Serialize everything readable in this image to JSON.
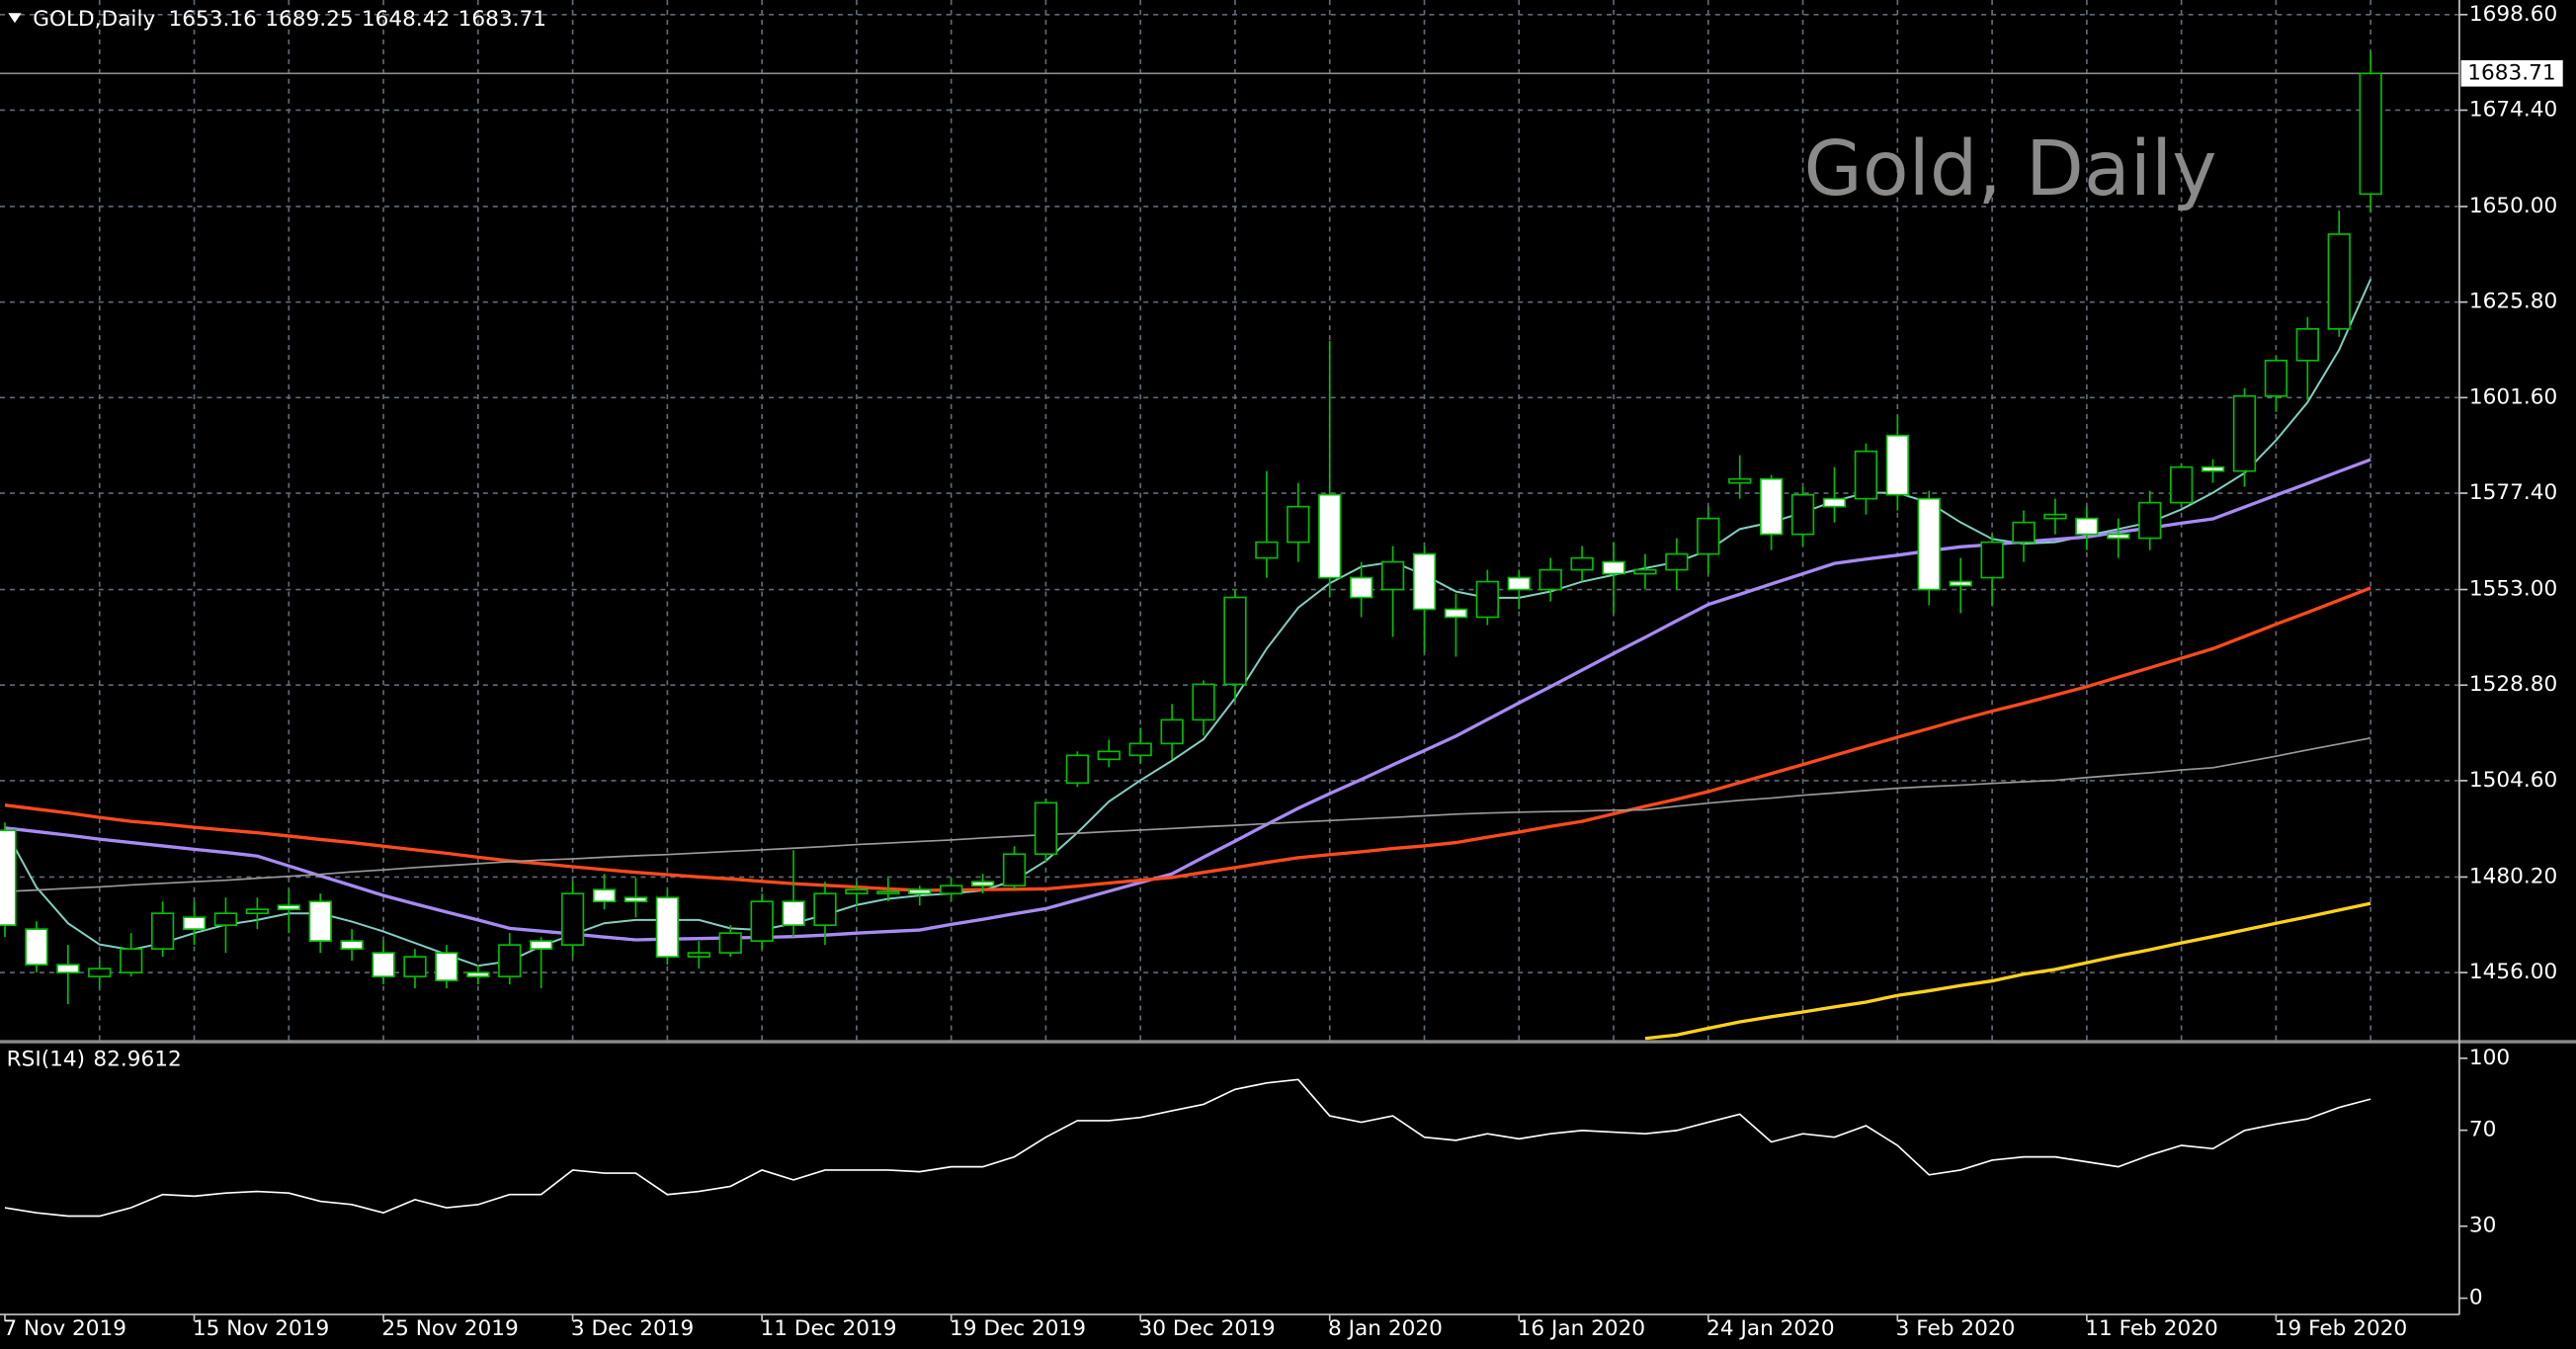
{
  "chart_data": [
    {
      "type": "candlestick",
      "title": "GOLD,Daily",
      "watermark": "Gold, Daily",
      "categories": [
        "7 Nov 2019",
        null,
        null,
        null,
        null,
        null,
        "15 Nov 2019",
        null,
        null,
        null,
        null,
        null,
        "25 Nov 2019",
        null,
        null,
        null,
        null,
        null,
        "3 Dec 2019",
        null,
        null,
        null,
        null,
        null,
        "11 Dec 2019",
        null,
        null,
        null,
        null,
        null,
        "19 Dec 2019",
        null,
        null,
        null,
        null,
        null,
        "30 Dec 2019",
        null,
        null,
        null,
        null,
        null,
        "8 Jan 2020",
        null,
        null,
        null,
        null,
        null,
        "16 Jan 2020",
        null,
        null,
        null,
        null,
        null,
        "24 Jan 2020",
        null,
        null,
        null,
        null,
        null,
        "3 Feb 2020",
        null,
        null,
        null,
        null,
        null,
        "11 Feb 2020",
        null,
        null,
        null,
        null,
        null,
        "19 Feb 2020",
        null,
        null,
        null
      ],
      "open": [
        1492,
        1467,
        1458,
        1455,
        1456,
        1462,
        1470,
        1468,
        1471,
        1473,
        1474,
        1464,
        1461,
        1455,
        1461,
        1456,
        1455,
        1464,
        1463,
        1477,
        1475,
        1475,
        1460,
        1461,
        1464,
        1474,
        1468,
        1476,
        1476,
        1477,
        1476,
        1479,
        1478,
        1486,
        1504,
        1510,
        1511,
        1514,
        1520,
        1529,
        1561,
        1565,
        1577,
        1556,
        1553,
        1562,
        1548,
        1546,
        1556,
        1553,
        1558,
        1560,
        1557,
        1558,
        1562,
        1580,
        1581,
        1567,
        1576,
        1576,
        1592,
        1576,
        1555,
        1556,
        1565,
        1571,
        1571,
        1567,
        1566,
        1575,
        1584,
        1583,
        1602,
        1611,
        1619,
        1653.16
      ],
      "high": [
        1494,
        1469,
        1463,
        1459,
        1466,
        1474,
        1474,
        1475,
        1475,
        1477,
        1476,
        1467,
        1464,
        1462,
        1463,
        1458,
        1466,
        1465,
        1479,
        1481,
        1480,
        1477,
        1464,
        1468,
        1476,
        1487,
        1479,
        1479,
        1480,
        1478,
        1480,
        1481,
        1488,
        1500,
        1512,
        1515,
        1518,
        1524,
        1530,
        1553,
        1583,
        1580,
        1616,
        1560,
        1564,
        1564,
        1552,
        1558,
        1558,
        1561,
        1564,
        1565,
        1562,
        1566,
        1574,
        1587,
        1582,
        1579,
        1584,
        1590,
        1597,
        1578,
        1561,
        1567,
        1573,
        1576,
        1574,
        1571,
        1578,
        1585,
        1586,
        1604,
        1612,
        1622,
        1649,
        1689.25
      ],
      "low": [
        1465,
        1456,
        1448,
        1452,
        1455,
        1460,
        1463,
        1461,
        1467,
        1466,
        1461,
        1459,
        1453,
        1452,
        1452,
        1453,
        1453,
        1452,
        1460,
        1472,
        1470,
        1458,
        1457,
        1460,
        1462,
        1465,
        1463,
        1473,
        1474,
        1473,
        1474,
        1476,
        1477,
        1484,
        1503,
        1508,
        1509,
        1510,
        1516,
        1525,
        1556,
        1560,
        1551,
        1546,
        1541,
        1537,
        1536,
        1544,
        1548,
        1550,
        1555,
        1547,
        1553,
        1553,
        1557,
        1576,
        1563,
        1564,
        1570,
        1572,
        1573,
        1549,
        1547,
        1549,
        1560,
        1567,
        1563,
        1561,
        1563,
        1574,
        1580,
        1579,
        1598,
        1601,
        1617,
        1648.42
      ],
      "close": [
        1468,
        1458,
        1456,
        1457,
        1462,
        1471,
        1467,
        1471,
        1472,
        1472,
        1464,
        1462,
        1455,
        1460,
        1454,
        1455,
        1463,
        1462,
        1476,
        1474,
        1474,
        1460,
        1461,
        1466,
        1474,
        1468,
        1476,
        1477,
        1476.5,
        1476,
        1478,
        1478,
        1486,
        1499,
        1511,
        1512,
        1514,
        1520,
        1529,
        1551,
        1565,
        1574,
        1556,
        1551,
        1560,
        1548,
        1546,
        1555,
        1553,
        1558,
        1561,
        1557,
        1558,
        1562,
        1571,
        1581,
        1567,
        1577,
        1574,
        1588,
        1577,
        1553,
        1554,
        1565,
        1570,
        1572,
        1567,
        1566,
        1575,
        1584,
        1583,
        1602,
        1611,
        1619,
        1643,
        1683.71
      ],
      "up_color": "#000000",
      "down_color": "#ffffff",
      "wick_color": "#00c000",
      "series": [
        {
          "color": "#7fd0c2",
          "width": 1.2,
          "values": [
            1492.2,
            1477.6,
            1468.5,
            1463.1,
            1461.8,
            1463.5,
            1466.0,
            1468.1,
            1469.3,
            1471.0,
            1471.0,
            1468.9,
            1466.4,
            1463.5,
            1460.6,
            1457.7,
            1458.9,
            1462.7,
            1465.6,
            1468.5,
            1469.3,
            1469.3,
            1469.3,
            1467.2,
            1466.8,
            1468.5,
            1470.6,
            1473.1,
            1474.7,
            1475.5,
            1476.0,
            1476.8,
            1479.3,
            1484.3,
            1491.4,
            1499.3,
            1504.7,
            1509.7,
            1515.1,
            1525.5,
            1538.0,
            1548.4,
            1554.6,
            1558.8,
            1560.0,
            1556.7,
            1552.5,
            1550.9,
            1550.9,
            1552.5,
            1555.0,
            1556.7,
            1558.4,
            1560.0,
            1562.9,
            1568.3,
            1570.0,
            1572.5,
            1575.4,
            1577.5,
            1577.5,
            1575.0,
            1570.0,
            1565.8,
            1564.6,
            1565.0,
            1566.7,
            1568.3,
            1570.0,
            1573.3,
            1577.5,
            1582.5,
            1590.8,
            1600.4,
            1613.7,
            1631.6
          ]
        },
        {
          "color": "#a88af5",
          "width": 2,
          "values": [
            1492.6,
            1491.7,
            1490.8,
            1489.8,
            1488.9,
            1488.1,
            1487.2,
            1486.4,
            1485.5,
            1483.0,
            1480.5,
            1478.0,
            1475.5,
            1473.4,
            1471.3,
            1469.3,
            1467.2,
            1466.5,
            1465.8,
            1465.0,
            1464.3,
            1464.5,
            1464.6,
            1464.8,
            1464.9,
            1465.1,
            1465.5,
            1466.0,
            1466.4,
            1466.8,
            1468.2,
            1469.5,
            1470.9,
            1472.2,
            1474.4,
            1476.6,
            1478.8,
            1481.0,
            1485.2,
            1489.3,
            1493.5,
            1497.6,
            1501.3,
            1504.9,
            1508.6,
            1512.2,
            1515.9,
            1520.1,
            1524.3,
            1528.4,
            1532.6,
            1536.8,
            1540.9,
            1545.1,
            1549.2,
            1551.8,
            1554.4,
            1557.0,
            1559.6,
            1560.7,
            1561.7,
            1562.8,
            1563.8,
            1564.4,
            1565.1,
            1565.7,
            1566.3,
            1567.5,
            1568.6,
            1569.8,
            1570.9,
            1573.9,
            1576.9,
            1579.9,
            1582.9,
            1585.9
          ]
        },
        {
          "color": "#ff4a1c",
          "width": 2,
          "values": [
            1498.4,
            1497.4,
            1496.4,
            1495.3,
            1494.3,
            1493.6,
            1492.8,
            1492.1,
            1491.4,
            1490.6,
            1489.7,
            1488.9,
            1488.0,
            1487.1,
            1486.2,
            1485.2,
            1484.3,
            1483.6,
            1482.8,
            1482.1,
            1481.4,
            1480.8,
            1480.2,
            1479.7,
            1479.1,
            1478.5,
            1478.1,
            1477.7,
            1477.2,
            1476.8,
            1476.9,
            1477.0,
            1477.1,
            1477.2,
            1477.9,
            1478.7,
            1479.4,
            1480.1,
            1481.4,
            1482.6,
            1483.9,
            1485.1,
            1485.9,
            1486.6,
            1487.4,
            1488.1,
            1488.9,
            1490.3,
            1491.6,
            1493.0,
            1494.3,
            1496.2,
            1498.1,
            1499.9,
            1501.8,
            1504.1,
            1506.4,
            1508.7,
            1511.0,
            1513.3,
            1515.6,
            1517.8,
            1520.1,
            1522.2,
            1524.2,
            1526.3,
            1528.4,
            1530.8,
            1533.2,
            1535.6,
            1538.0,
            1541.1,
            1544.2,
            1547.2,
            1550.3,
            1553.4
          ]
        },
        {
          "color": "#9a9a9a",
          "width": 1,
          "values": [
            1476.5,
            1476.9,
            1477.3,
            1477.7,
            1478.2,
            1478.6,
            1479.0,
            1479.4,
            1479.9,
            1480.4,
            1480.9,
            1481.5,
            1482.0,
            1482.6,
            1483.1,
            1483.6,
            1484.1,
            1484.5,
            1484.8,
            1485.2,
            1485.6,
            1485.9,
            1486.3,
            1486.7,
            1487.1,
            1487.5,
            1487.9,
            1488.4,
            1488.8,
            1489.2,
            1489.6,
            1490.1,
            1490.5,
            1490.9,
            1491.3,
            1491.7,
            1492.1,
            1492.5,
            1492.9,
            1493.3,
            1493.7,
            1494.1,
            1494.5,
            1494.9,
            1495.3,
            1495.7,
            1496.1,
            1496.4,
            1496.6,
            1496.8,
            1496.9,
            1497.1,
            1497.2,
            1498.1,
            1498.9,
            1499.6,
            1500.2,
            1500.9,
            1501.5,
            1502.1,
            1502.7,
            1503.1,
            1503.5,
            1503.9,
            1504.3,
            1504.7,
            1505.4,
            1506.0,
            1506.6,
            1507.3,
            1507.9,
            1509.3,
            1510.8,
            1512.4,
            1513.9,
            1515.4
          ]
        },
        {
          "color": "#ffd21a",
          "width": 2,
          "values": [
            null,
            null,
            null,
            null,
            null,
            null,
            null,
            null,
            null,
            null,
            null,
            null,
            null,
            null,
            null,
            null,
            null,
            null,
            null,
            null,
            null,
            null,
            null,
            null,
            null,
            null,
            null,
            null,
            null,
            null,
            null,
            null,
            null,
            null,
            null,
            null,
            null,
            null,
            null,
            null,
            null,
            null,
            null,
            null,
            null,
            null,
            null,
            null,
            null,
            null,
            null,
            null,
            1439.3,
            1440.2,
            1441.9,
            1443.5,
            1444.8,
            1446.0,
            1447.3,
            1448.5,
            1450.2,
            1451.4,
            1452.7,
            1453.9,
            1455.6,
            1456.8,
            1458.5,
            1460.2,
            1461.8,
            1463.5,
            1465.1,
            1466.8,
            1468.5,
            1470.1,
            1471.8,
            1473.5
          ]
        }
      ],
      "ylim": [
        1438.9,
        1702.3
      ],
      "yticks": [
        {
          "value": 1456.0,
          "label": "1456.00"
        },
        {
          "value": 1480.2,
          "label": "1480.20"
        },
        {
          "value": 1504.6,
          "label": "1504.60"
        },
        {
          "value": 1528.8,
          "label": "1528.80"
        },
        {
          "value": 1553.0,
          "label": "1553.00"
        },
        {
          "value": 1577.4,
          "label": "1577.40"
        },
        {
          "value": 1601.6,
          "label": "1601.60"
        },
        {
          "value": 1625.8,
          "label": "1625.80"
        },
        {
          "value": 1650.0,
          "label": "1650.00"
        },
        {
          "value": 1674.4,
          "label": "1674.40"
        },
        {
          "value": 1698.6,
          "label": "1698.60"
        }
      ],
      "grid": true,
      "grid_color": "#5f6b78",
      "last_price_line": true
    },
    {
      "type": "line",
      "title": "RSI(14)",
      "color": "#ffffff",
      "values": [
        37.7,
        35.6,
        34.2,
        34.2,
        37.7,
        43.2,
        42.5,
        43.8,
        44.5,
        43.8,
        40.4,
        39.0,
        35.6,
        41.1,
        37.7,
        39.0,
        43.2,
        43.2,
        53.4,
        52.1,
        52.1,
        43.2,
        44.5,
        46.6,
        53.4,
        49.3,
        53.4,
        53.4,
        53.4,
        52.7,
        54.8,
        54.8,
        58.9,
        67.1,
        74.0,
        74.0,
        75.3,
        78.1,
        80.8,
        87.0,
        89.7,
        91.1,
        76.0,
        73.3,
        76.0,
        67.1,
        65.8,
        68.5,
        66.4,
        68.5,
        69.9,
        69.2,
        68.5,
        69.9,
        73.3,
        76.7,
        65.1,
        68.5,
        67.1,
        71.9,
        63.7,
        51.4,
        53.4,
        57.5,
        58.9,
        58.9,
        56.8,
        54.8,
        59.6,
        63.7,
        62.3,
        69.9,
        72.6,
        74.7,
        79.5,
        82.9612
      ],
      "ylim": [
        -6.8,
        106.2
      ],
      "yticks": [
        0,
        30,
        70,
        100
      ]
    }
  ]
}
